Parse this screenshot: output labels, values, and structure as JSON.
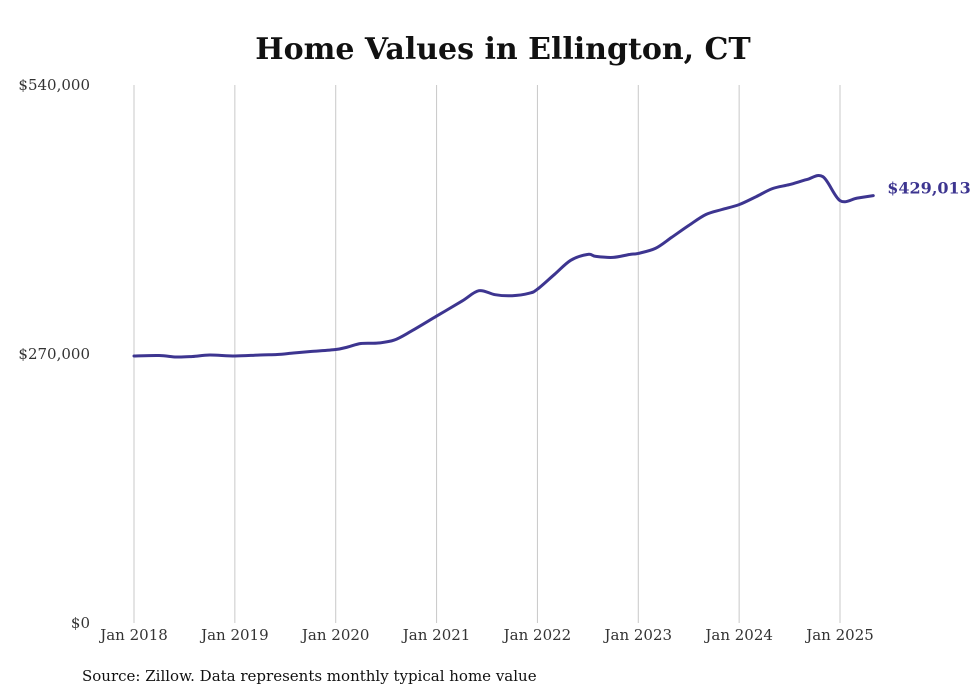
{
  "chart_data": {
    "type": "line",
    "title": "Home Values in Ellington, CT",
    "xlabel": "",
    "ylabel": "",
    "ylim": [
      0,
      540000
    ],
    "yticks": [
      {
        "value": 0,
        "label": "$0"
      },
      {
        "value": 270000,
        "label": "$270,000"
      },
      {
        "value": 540000,
        "label": "$540,000"
      }
    ],
    "xticks": [
      {
        "value": 2018.0,
        "label": "Jan 2018"
      },
      {
        "value": 2019.0,
        "label": "Jan 2019"
      },
      {
        "value": 2020.0,
        "label": "Jan 2020"
      },
      {
        "value": 2021.0,
        "label": "Jan 2021"
      },
      {
        "value": 2022.0,
        "label": "Jan 2022"
      },
      {
        "value": 2023.0,
        "label": "Jan 2023"
      },
      {
        "value": 2024.0,
        "label": "Jan 2024"
      },
      {
        "value": 2025.0,
        "label": "Jan 2025"
      }
    ],
    "xlim": [
      2018.0,
      2025.33
    ],
    "grid": "vertical",
    "line_color": "#3d3590",
    "end_label": "$429,013",
    "series": [
      {
        "x": [
          2018.0,
          2018.25,
          2018.42,
          2018.58,
          2018.75,
          2019.0,
          2019.25,
          2019.42,
          2019.58,
          2019.75,
          2020.0,
          2020.12,
          2020.25,
          2020.42,
          2020.58,
          2020.75,
          2021.0,
          2021.25,
          2021.42,
          2021.58,
          2021.75,
          2021.92,
          2022.0,
          2022.17,
          2022.33,
          2022.5,
          2022.58,
          2022.75,
          2022.92,
          2023.0,
          2023.17,
          2023.33,
          2023.5,
          2023.67,
          2023.83,
          2024.0,
          2024.17,
          2024.33,
          2024.5,
          2024.67,
          2024.83,
          2025.0,
          2025.17,
          2025.33
        ],
        "y": [
          268000,
          268500,
          267000,
          267500,
          269000,
          268000,
          269000,
          269500,
          271000,
          272500,
          274500,
          277000,
          280500,
          281000,
          284000,
          293000,
          308000,
          323000,
          333500,
          329500,
          328500,
          331000,
          335000,
          350000,
          364000,
          370000,
          368000,
          367000,
          370000,
          371000,
          376000,
          387000,
          399000,
          410000,
          415000,
          420000,
          428000,
          436000,
          440000,
          445000,
          448000,
          424000,
          426500,
          429013
        ]
      }
    ]
  },
  "footer": {
    "source": "Source: Zillow. Data represents monthly typical home value"
  }
}
